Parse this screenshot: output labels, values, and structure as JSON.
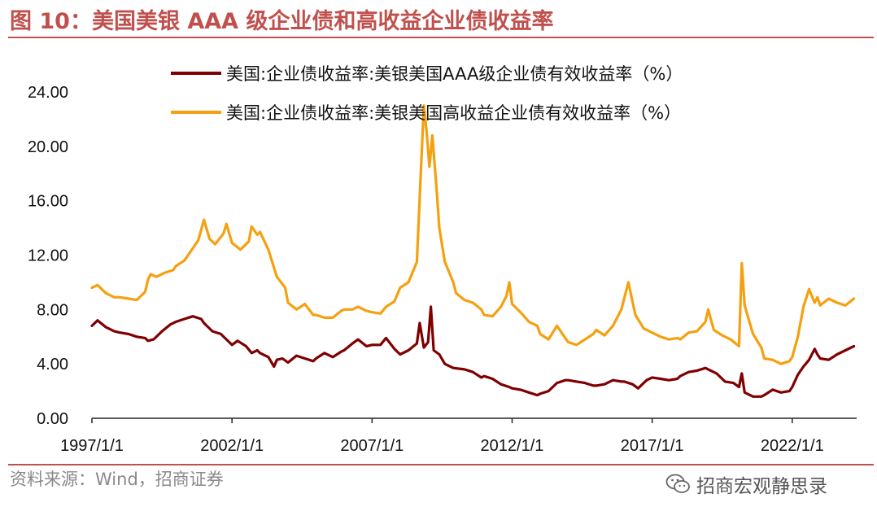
{
  "header": {
    "title": "图 10：美国美银 AAA 级企业债和高收益企业债收益率"
  },
  "footer": {
    "source": "资料来源：Wind，招商证券",
    "watermark": "招商宏观静思录",
    "watermark_icon": "wechat-icon"
  },
  "colors": {
    "accent": "#c0504d",
    "aaa_series": "#7f0000",
    "hy_series": "#f5a00f"
  },
  "chart_data": {
    "type": "line",
    "ylim": [
      0,
      24
    ],
    "yticks": [
      "0.00",
      "4.00",
      "8.00",
      "12.00",
      "16.00",
      "20.00",
      "24.00"
    ],
    "xlim": [
      1997.0,
      2024.3
    ],
    "xticks": [
      {
        "label": "1997/1/1",
        "x": 1997.0
      },
      {
        "label": "2002/1/1",
        "x": 2002.0
      },
      {
        "label": "2007/1/1",
        "x": 2007.0
      },
      {
        "label": "2012/1/1",
        "x": 2012.0
      },
      {
        "label": "2017/1/1",
        "x": 2017.0
      },
      {
        "label": "2022/1/1",
        "x": 2022.0
      }
    ],
    "grid": false,
    "legend": "top",
    "series": [
      {
        "name": "美国:企业债收益率:美银美国AAA级企业债有效收益率（%）",
        "color": "#7f0000",
        "points": [
          [
            1997.0,
            6.8
          ],
          [
            1997.2,
            7.2
          ],
          [
            1997.5,
            6.7
          ],
          [
            1997.8,
            6.4
          ],
          [
            1998.0,
            6.3
          ],
          [
            1998.3,
            6.2
          ],
          [
            1998.6,
            6.0
          ],
          [
            1998.9,
            5.9
          ],
          [
            1999.0,
            5.7
          ],
          [
            1999.2,
            5.8
          ],
          [
            1999.5,
            6.4
          ],
          [
            1999.8,
            6.9
          ],
          [
            2000.0,
            7.1
          ],
          [
            2000.3,
            7.3
          ],
          [
            2000.6,
            7.5
          ],
          [
            2000.9,
            7.3
          ],
          [
            2001.0,
            7.0
          ],
          [
            2001.3,
            6.4
          ],
          [
            2001.6,
            6.2
          ],
          [
            2001.9,
            5.6
          ],
          [
            2002.0,
            5.4
          ],
          [
            2002.2,
            5.7
          ],
          [
            2002.5,
            5.3
          ],
          [
            2002.7,
            4.8
          ],
          [
            2002.9,
            5.0
          ],
          [
            2003.0,
            4.8
          ],
          [
            2003.3,
            4.5
          ],
          [
            2003.5,
            3.8
          ],
          [
            2003.6,
            4.3
          ],
          [
            2003.8,
            4.4
          ],
          [
            2004.0,
            4.1
          ],
          [
            2004.3,
            4.6
          ],
          [
            2004.6,
            4.4
          ],
          [
            2004.9,
            4.2
          ],
          [
            2005.0,
            4.4
          ],
          [
            2005.3,
            4.8
          ],
          [
            2005.6,
            4.5
          ],
          [
            2005.9,
            4.9
          ],
          [
            2006.0,
            5.0
          ],
          [
            2006.3,
            5.5
          ],
          [
            2006.5,
            5.8
          ],
          [
            2006.8,
            5.3
          ],
          [
            2007.0,
            5.4
          ],
          [
            2007.3,
            5.4
          ],
          [
            2007.5,
            5.9
          ],
          [
            2007.8,
            5.1
          ],
          [
            2008.0,
            4.7
          ],
          [
            2008.3,
            5.0
          ],
          [
            2008.6,
            5.5
          ],
          [
            2008.7,
            7.0
          ],
          [
            2008.85,
            5.2
          ],
          [
            2009.0,
            5.6
          ],
          [
            2009.1,
            8.2
          ],
          [
            2009.2,
            5.0
          ],
          [
            2009.4,
            4.7
          ],
          [
            2009.6,
            4.0
          ],
          [
            2009.9,
            3.7
          ],
          [
            2010.3,
            3.6
          ],
          [
            2010.6,
            3.4
          ],
          [
            2010.9,
            3.0
          ],
          [
            2011.0,
            3.1
          ],
          [
            2011.3,
            2.9
          ],
          [
            2011.6,
            2.5
          ],
          [
            2011.9,
            2.3
          ],
          [
            2012.0,
            2.2
          ],
          [
            2012.3,
            2.1
          ],
          [
            2012.6,
            1.9
          ],
          [
            2012.9,
            1.7
          ],
          [
            2013.0,
            1.8
          ],
          [
            2013.3,
            2.0
          ],
          [
            2013.6,
            2.6
          ],
          [
            2013.9,
            2.8
          ],
          [
            2014.0,
            2.8
          ],
          [
            2014.3,
            2.7
          ],
          [
            2014.6,
            2.6
          ],
          [
            2014.9,
            2.4
          ],
          [
            2015.0,
            2.4
          ],
          [
            2015.3,
            2.5
          ],
          [
            2015.6,
            2.8
          ],
          [
            2015.9,
            2.7
          ],
          [
            2016.0,
            2.7
          ],
          [
            2016.3,
            2.5
          ],
          [
            2016.5,
            2.2
          ],
          [
            2016.8,
            2.8
          ],
          [
            2017.0,
            3.0
          ],
          [
            2017.3,
            2.9
          ],
          [
            2017.6,
            2.8
          ],
          [
            2017.9,
            2.9
          ],
          [
            2018.0,
            3.1
          ],
          [
            2018.3,
            3.4
          ],
          [
            2018.6,
            3.5
          ],
          [
            2018.9,
            3.7
          ],
          [
            2019.0,
            3.6
          ],
          [
            2019.3,
            3.3
          ],
          [
            2019.6,
            2.7
          ],
          [
            2019.9,
            2.6
          ],
          [
            2020.1,
            2.3
          ],
          [
            2020.2,
            3.3
          ],
          [
            2020.3,
            1.9
          ],
          [
            2020.6,
            1.6
          ],
          [
            2020.9,
            1.6
          ],
          [
            2021.0,
            1.7
          ],
          [
            2021.3,
            2.1
          ],
          [
            2021.6,
            1.9
          ],
          [
            2021.9,
            2.0
          ],
          [
            2022.0,
            2.3
          ],
          [
            2022.2,
            3.2
          ],
          [
            2022.4,
            3.8
          ],
          [
            2022.6,
            4.3
          ],
          [
            2022.8,
            5.1
          ],
          [
            2022.9,
            4.7
          ],
          [
            2023.0,
            4.4
          ],
          [
            2023.3,
            4.3
          ],
          [
            2023.6,
            4.7
          ],
          [
            2023.9,
            5.0
          ],
          [
            2024.2,
            5.3
          ]
        ]
      },
      {
        "name": "美国:企业债收益率:美银美国高收益企业债有效收益率（%）",
        "color": "#f5a00f",
        "points": [
          [
            1997.0,
            9.6
          ],
          [
            1997.2,
            9.8
          ],
          [
            1997.5,
            9.2
          ],
          [
            1997.8,
            8.9
          ],
          [
            1998.0,
            8.9
          ],
          [
            1998.3,
            8.8
          ],
          [
            1998.6,
            8.7
          ],
          [
            1998.9,
            9.3
          ],
          [
            1999.0,
            10.2
          ],
          [
            1999.1,
            10.6
          ],
          [
            1999.3,
            10.4
          ],
          [
            1999.6,
            10.7
          ],
          [
            1999.9,
            10.9
          ],
          [
            2000.0,
            11.2
          ],
          [
            2000.3,
            11.6
          ],
          [
            2000.6,
            12.5
          ],
          [
            2000.8,
            13.1
          ],
          [
            2001.0,
            14.6
          ],
          [
            2001.2,
            13.2
          ],
          [
            2001.4,
            12.8
          ],
          [
            2001.7,
            13.6
          ],
          [
            2001.8,
            14.3
          ],
          [
            2002.0,
            12.9
          ],
          [
            2002.3,
            12.4
          ],
          [
            2002.6,
            13.0
          ],
          [
            2002.7,
            14.1
          ],
          [
            2002.9,
            13.5
          ],
          [
            2003.0,
            13.7
          ],
          [
            2003.3,
            12.4
          ],
          [
            2003.6,
            10.4
          ],
          [
            2003.9,
            9.6
          ],
          [
            2004.0,
            8.5
          ],
          [
            2004.3,
            8.0
          ],
          [
            2004.6,
            8.4
          ],
          [
            2004.9,
            7.6
          ],
          [
            2005.0,
            7.6
          ],
          [
            2005.3,
            7.4
          ],
          [
            2005.6,
            7.4
          ],
          [
            2005.9,
            7.9
          ],
          [
            2006.0,
            8.0
          ],
          [
            2006.3,
            8.0
          ],
          [
            2006.5,
            8.2
          ],
          [
            2006.8,
            7.9
          ],
          [
            2007.0,
            7.8
          ],
          [
            2007.3,
            7.7
          ],
          [
            2007.5,
            8.2
          ],
          [
            2007.8,
            8.6
          ],
          [
            2008.0,
            9.6
          ],
          [
            2008.3,
            10.0
          ],
          [
            2008.6,
            11.5
          ],
          [
            2008.75,
            18.5
          ],
          [
            2008.85,
            23.0
          ],
          [
            2008.95,
            21.0
          ],
          [
            2009.05,
            18.5
          ],
          [
            2009.15,
            20.8
          ],
          [
            2009.3,
            17.0
          ],
          [
            2009.4,
            14.0
          ],
          [
            2009.6,
            11.5
          ],
          [
            2009.9,
            10.0
          ],
          [
            2010.0,
            9.2
          ],
          [
            2010.3,
            8.7
          ],
          [
            2010.6,
            8.5
          ],
          [
            2010.9,
            8.0
          ],
          [
            2011.0,
            7.6
          ],
          [
            2011.3,
            7.5
          ],
          [
            2011.6,
            8.2
          ],
          [
            2011.8,
            9.0
          ],
          [
            2011.9,
            10.0
          ],
          [
            2012.0,
            8.4
          ],
          [
            2012.3,
            7.8
          ],
          [
            2012.6,
            7.1
          ],
          [
            2012.9,
            6.8
          ],
          [
            2013.0,
            6.2
          ],
          [
            2013.3,
            5.8
          ],
          [
            2013.6,
            6.8
          ],
          [
            2013.9,
            5.9
          ],
          [
            2014.0,
            5.6
          ],
          [
            2014.3,
            5.4
          ],
          [
            2014.6,
            5.8
          ],
          [
            2014.9,
            6.2
          ],
          [
            2015.0,
            6.5
          ],
          [
            2015.3,
            6.1
          ],
          [
            2015.6,
            6.8
          ],
          [
            2015.9,
            8.0
          ],
          [
            2016.0,
            8.8
          ],
          [
            2016.15,
            10.0
          ],
          [
            2016.4,
            7.6
          ],
          [
            2016.7,
            6.6
          ],
          [
            2017.0,
            6.3
          ],
          [
            2017.3,
            6.0
          ],
          [
            2017.6,
            5.8
          ],
          [
            2017.9,
            5.9
          ],
          [
            2018.0,
            5.8
          ],
          [
            2018.3,
            6.3
          ],
          [
            2018.6,
            6.4
          ],
          [
            2018.9,
            7.1
          ],
          [
            2019.0,
            8.0
          ],
          [
            2019.2,
            6.5
          ],
          [
            2019.5,
            6.1
          ],
          [
            2019.8,
            5.8
          ],
          [
            2020.1,
            5.3
          ],
          [
            2020.2,
            11.4
          ],
          [
            2020.3,
            8.3
          ],
          [
            2020.6,
            6.2
          ],
          [
            2020.9,
            5.2
          ],
          [
            2021.0,
            4.4
          ],
          [
            2021.3,
            4.3
          ],
          [
            2021.6,
            4.0
          ],
          [
            2021.9,
            4.2
          ],
          [
            2022.0,
            4.5
          ],
          [
            2022.2,
            6.0
          ],
          [
            2022.4,
            8.2
          ],
          [
            2022.6,
            9.5
          ],
          [
            2022.8,
            8.5
          ],
          [
            2022.9,
            8.9
          ],
          [
            2023.0,
            8.3
          ],
          [
            2023.3,
            8.8
          ],
          [
            2023.6,
            8.5
          ],
          [
            2023.9,
            8.3
          ],
          [
            2024.2,
            8.8
          ]
        ]
      }
    ]
  }
}
